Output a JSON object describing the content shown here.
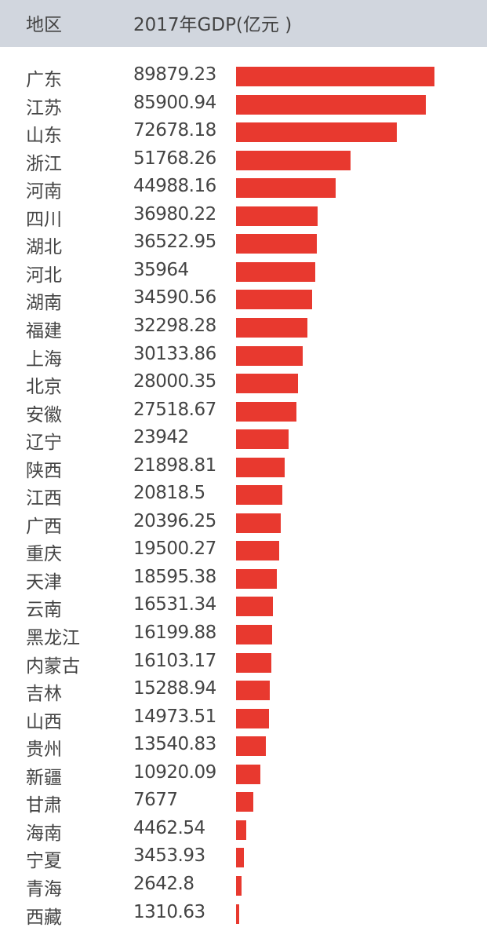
{
  "header": {
    "region_label": "地区",
    "gdp_label": "2017年GDP(亿元 )"
  },
  "colors": {
    "bar": "#e8392f",
    "header_bg": "#d1d6de"
  },
  "chart_data": {
    "type": "bar",
    "orientation": "horizontal",
    "categories": [
      "广东",
      "江苏",
      "山东",
      "浙江",
      "河南",
      "四川",
      "湖北",
      "河北",
      "湖南",
      "福建",
      "上海",
      "北京",
      "安徽",
      "辽宁",
      "陕西",
      "江西",
      "广西",
      "重庆",
      "天津",
      "云南",
      "黑龙江",
      "内蒙古",
      "吉林",
      "山西",
      "贵州",
      "新疆",
      "甘肃",
      "海南",
      "宁夏",
      "青海",
      "西藏"
    ],
    "value_labels": [
      "89879.23",
      "85900.94",
      "72678.18",
      "51768.26",
      "44988.16",
      "36980.22",
      "36522.95",
      "35964",
      "34590.56",
      "32298.28",
      "30133.86",
      "28000.35",
      "27518.67",
      "23942",
      "21898.81",
      "20818.5",
      "20396.25",
      "19500.27",
      "18595.38",
      "16531.34",
      "16199.88",
      "16103.17",
      "15288.94",
      "14973.51",
      "13540.83",
      "10920.09",
      "7677",
      "4462.54",
      "3453.93",
      "2642.8",
      "1310.63"
    ],
    "values": [
      89879.23,
      85900.94,
      72678.18,
      51768.26,
      44988.16,
      36980.22,
      36522.95,
      35964,
      34590.56,
      32298.28,
      30133.86,
      28000.35,
      27518.67,
      23942,
      21898.81,
      20818.5,
      20396.25,
      19500.27,
      18595.38,
      16531.34,
      16199.88,
      16103.17,
      15288.94,
      14973.51,
      13540.83,
      10920.09,
      7677,
      4462.54,
      3453.93,
      2642.8,
      1310.63
    ],
    "xlim": [
      0,
      89879.23
    ],
    "grid": false
  }
}
